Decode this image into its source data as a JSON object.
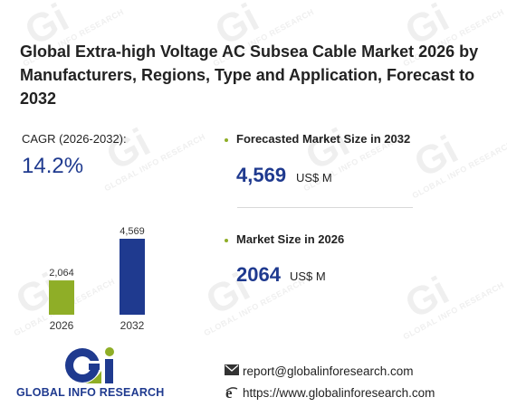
{
  "title": "Global Extra-high Voltage AC Subsea Cable Market 2026 by Manufacturers, Regions, Type and Application, Forecast to 2032",
  "cagr": {
    "label": "CAGR (2026-2032):",
    "value": "14.2%"
  },
  "kpis": [
    {
      "label": "Forecasted Market Size in 2032",
      "value": "4,569",
      "unit": "US$ M"
    },
    {
      "label": "Market Size in 2026",
      "value": "2064",
      "unit": "US$ M"
    }
  ],
  "chart_data": {
    "type": "bar",
    "categories": [
      "2026",
      "2032"
    ],
    "values": [
      2064,
      4569
    ],
    "value_labels": [
      "2,064",
      "4,569"
    ],
    "bar_colors": [
      "#8fae27",
      "#1f3a8f"
    ],
    "ylim": [
      0,
      4569
    ],
    "grid": false,
    "legend": "none"
  },
  "logo": {
    "text": "GLOBAL INFO RESEARCH"
  },
  "contact": {
    "email": "report@globalinforesearch.com",
    "website": "https://www.globalinforesearch.com"
  },
  "watermark": {
    "letters": "Gi",
    "text": "GLOBAL INFO RESEARCH"
  },
  "colors": {
    "accent_green": "#8fae27",
    "accent_blue": "#1f3a8f"
  }
}
